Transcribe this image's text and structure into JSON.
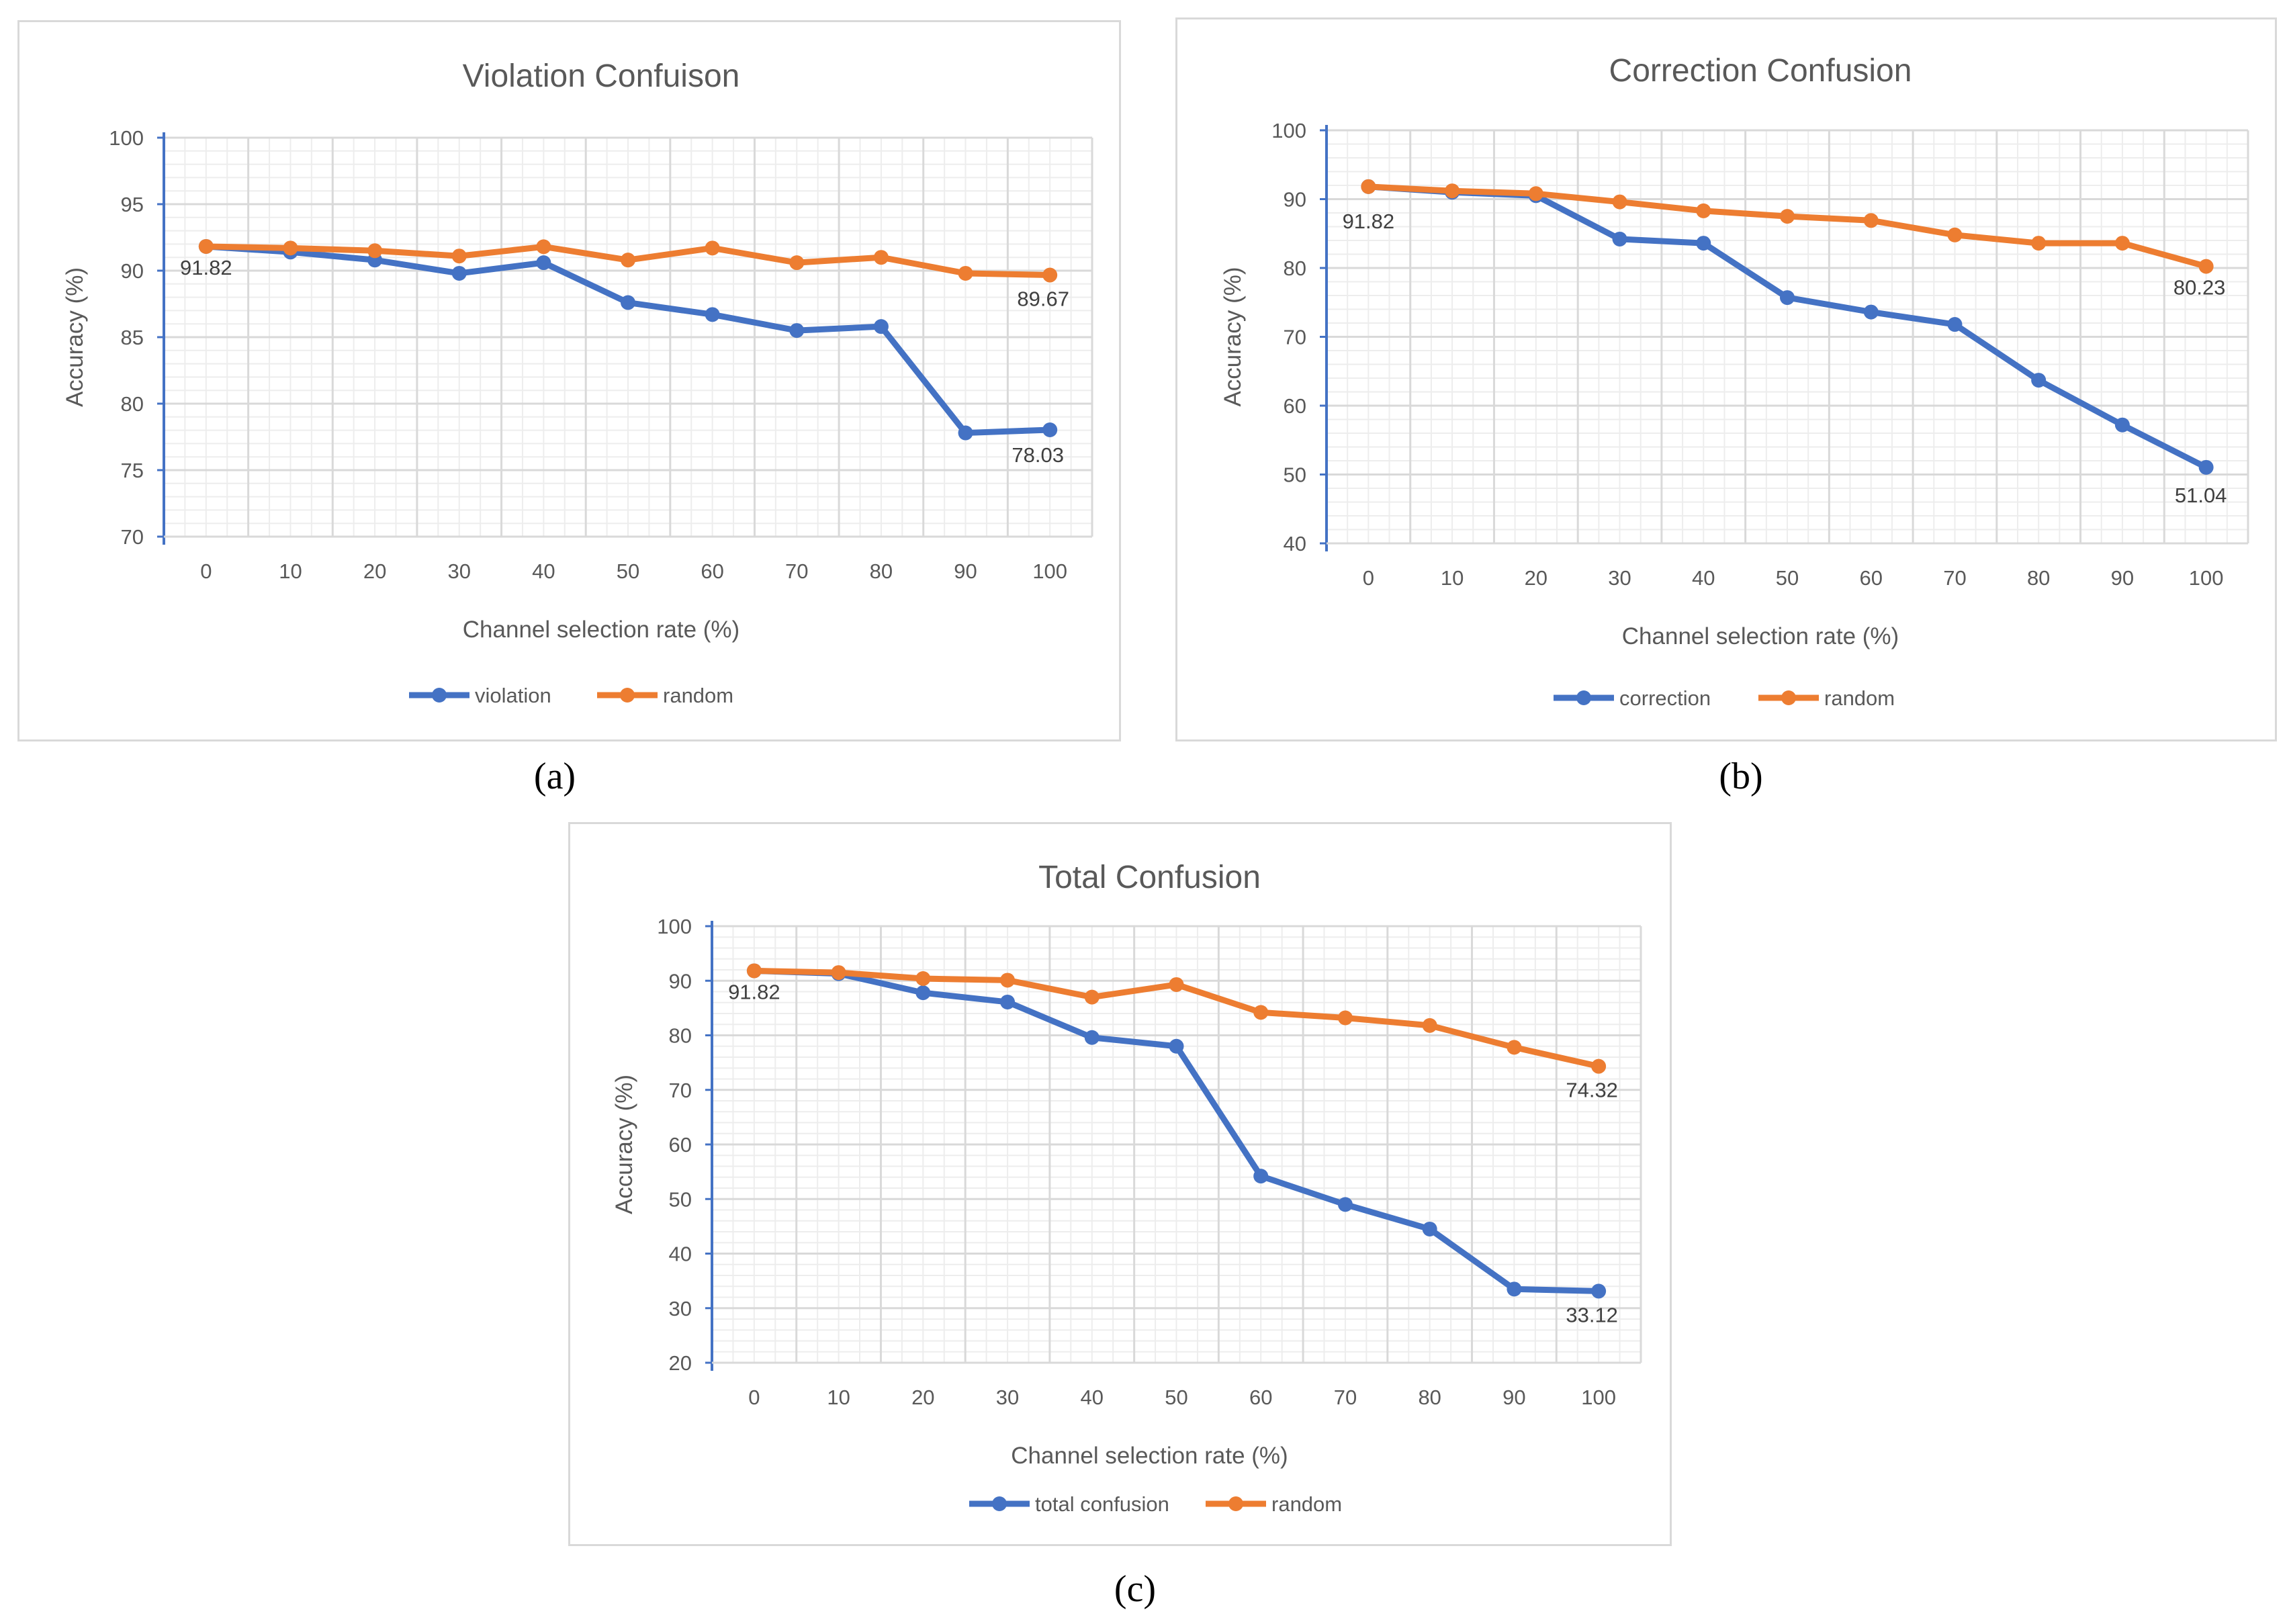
{
  "captions": [
    "(a)",
    "(b)",
    "(c)"
  ],
  "colors": {
    "series1": "#4472C4",
    "series2": "#ED7D31",
    "axis": "#4472C4",
    "grid": "#d9d9d9",
    "text": "#595959"
  },
  "chart_data": [
    {
      "type": "line",
      "title": "Violation Confuison",
      "xlabel": "Channel selection rate (%)",
      "ylabel": "Accuracy (%)",
      "categories": [
        "0",
        "10",
        "20",
        "30",
        "40",
        "50",
        "60",
        "70",
        "80",
        "90",
        "100"
      ],
      "ylim": [
        70,
        100
      ],
      "yticks": [
        "70",
        "75",
        "80",
        "85",
        "90",
        "95",
        "100"
      ],
      "grid": true,
      "legend_position": "bottom",
      "series": [
        {
          "name": "violation",
          "values": [
            91.82,
            91.4,
            90.8,
            89.8,
            90.6,
            87.6,
            86.7,
            85.5,
            85.8,
            77.8,
            78.03
          ]
        },
        {
          "name": "random",
          "values": [
            91.82,
            91.7,
            91.5,
            91.1,
            91.8,
            90.8,
            91.7,
            90.6,
            91.0,
            89.8,
            89.67
          ]
        }
      ],
      "annotations": [
        "91.82",
        "89.67",
        "78.03"
      ]
    },
    {
      "type": "line",
      "title": "Correction Confusion",
      "xlabel": "Channel selection rate (%)",
      "ylabel": "Accuracy (%)",
      "categories": [
        "0",
        "10",
        "20",
        "30",
        "40",
        "50",
        "60",
        "70",
        "80",
        "90",
        "100"
      ],
      "ylim": [
        40,
        100
      ],
      "yticks": [
        "40",
        "50",
        "60",
        "70",
        "80",
        "90",
        "100"
      ],
      "grid": true,
      "legend_position": "bottom",
      "series": [
        {
          "name": "correction",
          "values": [
            91.82,
            91.0,
            90.5,
            84.2,
            83.6,
            75.7,
            73.6,
            71.8,
            63.7,
            57.2,
            51.04
          ]
        },
        {
          "name": "random",
          "values": [
            91.82,
            91.2,
            90.8,
            89.6,
            88.3,
            87.5,
            86.9,
            84.8,
            83.6,
            83.6,
            80.23
          ]
        }
      ],
      "annotations": [
        "91.82",
        "80.23",
        "51.04"
      ]
    },
    {
      "type": "line",
      "title": "Total Confusion",
      "xlabel": "Channel selection rate (%)",
      "ylabel": "Accuracy (%)",
      "categories": [
        "0",
        "10",
        "20",
        "30",
        "40",
        "50",
        "60",
        "70",
        "80",
        "90",
        "100"
      ],
      "ylim": [
        20,
        100
      ],
      "yticks": [
        "20",
        "30",
        "40",
        "50",
        "60",
        "70",
        "80",
        "90",
        "100"
      ],
      "grid": true,
      "legend_position": "bottom",
      "series": [
        {
          "name": "total confusion",
          "values": [
            91.82,
            91.3,
            87.8,
            86.1,
            79.6,
            78.0,
            54.2,
            49.0,
            44.5,
            33.5,
            33.12
          ]
        },
        {
          "name": "random",
          "values": [
            91.82,
            91.5,
            90.4,
            90.1,
            87.0,
            89.3,
            84.2,
            83.2,
            81.8,
            77.8,
            74.32
          ]
        }
      ],
      "annotations": [
        "91.82",
        "74.32",
        "33.12"
      ]
    }
  ]
}
